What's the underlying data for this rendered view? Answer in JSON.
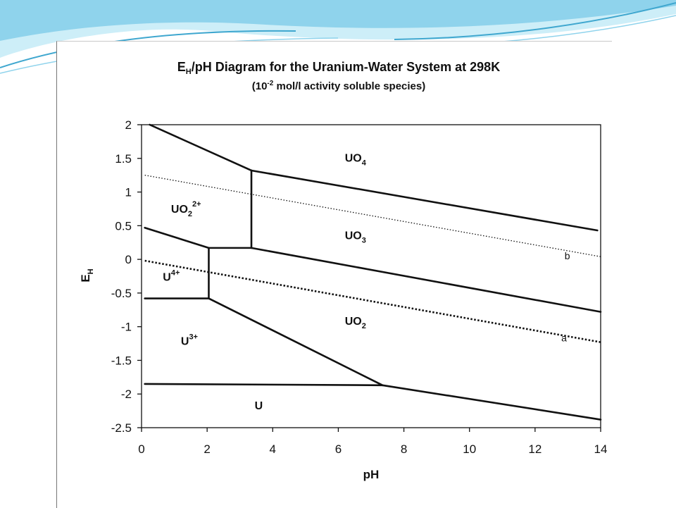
{
  "colors": {
    "background": "#ffffff",
    "header_wave_light": "#cdeef8",
    "header_wave_mid": "#8fd3ec",
    "header_wave_dark": "#3fa7cf",
    "ink": "#111111"
  },
  "chart_data": {
    "type": "line",
    "title_parts": [
      "E",
      "H",
      "/pH Diagram for the Uranium-Water System at 298K"
    ],
    "subtitle_parts": [
      "(10",
      "-2",
      " mol/l activity soluble species)"
    ],
    "xlabel": "pH",
    "ylabel_parts": [
      "E",
      "H"
    ],
    "xlim": [
      0,
      14
    ],
    "ylim": [
      -2.5,
      2
    ],
    "x_ticks": [
      0,
      2,
      4,
      6,
      8,
      10,
      12,
      14
    ],
    "x_tick_labels": [
      "0",
      "2",
      "4",
      "6",
      "8",
      "10",
      "12",
      "14"
    ],
    "y_ticks": [
      2,
      1.5,
      1,
      0.5,
      0,
      -0.5,
      -1,
      -1.5,
      -2,
      -2.5
    ],
    "y_tick_labels": [
      "2",
      "1.5",
      "1",
      "0.5",
      "0",
      "-0.5",
      "-1",
      "-1.5",
      "-2",
      "-2.5"
    ],
    "grid": false,
    "boundaries": [
      {
        "id": "uo2-2plus-uo4",
        "x": [
          0.25,
          3.35
        ],
        "y": [
          2.0,
          1.32
        ]
      },
      {
        "id": "uo3-uo4",
        "x": [
          3.35,
          13.9
        ],
        "y": [
          1.32,
          0.43
        ]
      },
      {
        "id": "uo2-2plus-uo3",
        "x": [
          3.35,
          3.35
        ],
        "y": [
          1.32,
          0.17
        ]
      },
      {
        "id": "uo2-2plus-u4plus",
        "x": [
          0.1,
          2.05
        ],
        "y": [
          0.47,
          0.17
        ]
      },
      {
        "id": "uo2-2plus-uo2",
        "x": [
          2.05,
          3.35
        ],
        "y": [
          0.17,
          0.17
        ]
      },
      {
        "id": "uo3-uo2",
        "x": [
          3.35,
          14.0
        ],
        "y": [
          0.17,
          -0.78
        ]
      },
      {
        "id": "u4plus-uo2",
        "x": [
          2.05,
          2.05
        ],
        "y": [
          0.17,
          -0.58
        ]
      },
      {
        "id": "u3plus-u4plus",
        "x": [
          0.1,
          2.05
        ],
        "y": [
          -0.58,
          -0.58
        ]
      },
      {
        "id": "u3plus-uo2",
        "x": [
          2.05,
          7.35
        ],
        "y": [
          -0.58,
          -1.87
        ]
      },
      {
        "id": "u-u3plus",
        "x": [
          0.1,
          7.35
        ],
        "y": [
          -1.85,
          -1.87
        ]
      },
      {
        "id": "u-uo2",
        "x": [
          7.35,
          14.0
        ],
        "y": [
          -1.87,
          -2.38
        ]
      }
    ],
    "reference_lines": [
      {
        "name": "a",
        "x": [
          0.1,
          14.0
        ],
        "y": [
          -0.02,
          -1.23
        ],
        "style": "dotted"
      },
      {
        "name": "b",
        "x": [
          0.1,
          14.0
        ],
        "y": [
          1.25,
          0.04
        ],
        "style": "dotted"
      }
    ],
    "reference_labels": [
      {
        "text": "a",
        "x": 12.8,
        "y": -1.22
      },
      {
        "text": "b",
        "x": 12.9,
        "y": 0.0
      }
    ],
    "region_labels": [
      {
        "base": "UO",
        "sub": "4",
        "sup": "",
        "x": 6.2,
        "y": 1.45
      },
      {
        "base": "UO",
        "sub": "2",
        "sup": "2+",
        "x": 0.9,
        "y": 0.69
      },
      {
        "base": "UO",
        "sub": "3",
        "sup": "",
        "x": 6.2,
        "y": 0.3
      },
      {
        "base": "U",
        "sub": "",
        "sup": "4+",
        "x": 0.65,
        "y": -0.32
      },
      {
        "base": "UO",
        "sub": "2",
        "sup": "",
        "x": 6.2,
        "y": -0.97
      },
      {
        "base": "U",
        "sub": "",
        "sup": "3+",
        "x": 1.2,
        "y": -1.27
      },
      {
        "base": "U",
        "sub": "",
        "sup": "",
        "x": 3.45,
        "y": -2.23
      }
    ]
  }
}
